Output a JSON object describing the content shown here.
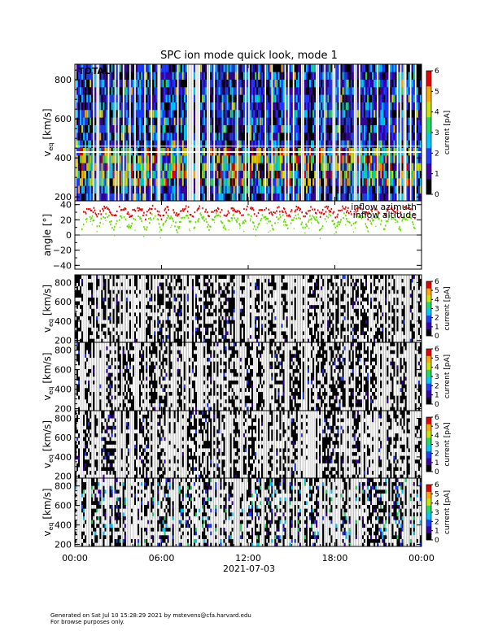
{
  "chart_data": {
    "type": "heatmap",
    "title": "SPC ion mode quick look, mode 1",
    "xlabel": "2021-07-03",
    "x_ticks": [
      "00:00",
      "06:00",
      "12:00",
      "18:00",
      "00:00"
    ],
    "x_range_hours": [
      0,
      24
    ],
    "colorbar": {
      "label": "current [pA]",
      "range": [
        0,
        6
      ],
      "colors": [
        "#000000",
        "#3a00a0",
        "#1e3cff",
        "#00c8ff",
        "#1edc64",
        "#c8e600",
        "#ffaa00",
        "#e60000"
      ]
    },
    "spectrogram_panels": [
      {
        "ylabel": "v",
        "ylabel_sub": "eq",
        "ylabel_unit": "[km/s]",
        "y_range": [
          180,
          880
        ],
        "y_ticks": [
          "200",
          "400",
          "600",
          "800"
        ],
        "cb_ticks": [
          "0",
          "1",
          "2",
          "3",
          "4",
          "5",
          "6"
        ],
        "annotation": "TOTAL",
        "activity": "high"
      },
      {
        "ylabel": "v",
        "ylabel_sub": "eq",
        "ylabel_unit": "[km/s]",
        "y_range": [
          180,
          880
        ],
        "y_ticks": [
          "200",
          "400",
          "600",
          "800"
        ],
        "cb_ticks": [
          "0",
          "1",
          "2",
          "3",
          "4",
          "5",
          "6"
        ],
        "annotation": "",
        "activity": "low"
      },
      {
        "ylabel": "v",
        "ylabel_sub": "eq",
        "ylabel_unit": "[km/s]",
        "y_range": [
          180,
          880
        ],
        "y_ticks": [
          "200",
          "400",
          "600",
          "800"
        ],
        "cb_ticks": [
          "0",
          "1",
          "2",
          "3",
          "4",
          "5",
          "6"
        ],
        "annotation": "",
        "activity": "low"
      },
      {
        "ylabel": "v",
        "ylabel_sub": "eq",
        "ylabel_unit": "[km/s]",
        "y_range": [
          180,
          880
        ],
        "y_ticks": [
          "200",
          "400",
          "600",
          "800"
        ],
        "cb_ticks": [
          "0",
          "1",
          "2",
          "3",
          "4",
          "5",
          "6"
        ],
        "annotation": "",
        "activity": "low"
      },
      {
        "ylabel": "v",
        "ylabel_sub": "eq",
        "ylabel_unit": "[km/s]",
        "y_range": [
          180,
          880
        ],
        "y_ticks": [
          "200",
          "400",
          "600",
          "800"
        ],
        "cb_ticks": [
          "0",
          "1",
          "2",
          "3",
          "4",
          "5",
          "6"
        ],
        "annotation": "",
        "activity": "medium"
      }
    ],
    "angle_panel": {
      "ylabel": "angle [°]",
      "y_range": [
        -45,
        45
      ],
      "y_ticks": [
        "40",
        "20",
        "0",
        "−20",
        "−40"
      ],
      "series": [
        {
          "name": "inflow azimuth",
          "color": "#e60000",
          "typical_range": [
            20,
            35
          ]
        },
        {
          "name": "inflow altitude",
          "color": "#64dc00",
          "typical_range": [
            0,
            25
          ]
        }
      ]
    }
  },
  "footer": {
    "line1": "Generated on Sat Jul 10 15:28:29 2021 by mstevens@cfa.harvard.edu",
    "line2": "For browse purposes only."
  }
}
